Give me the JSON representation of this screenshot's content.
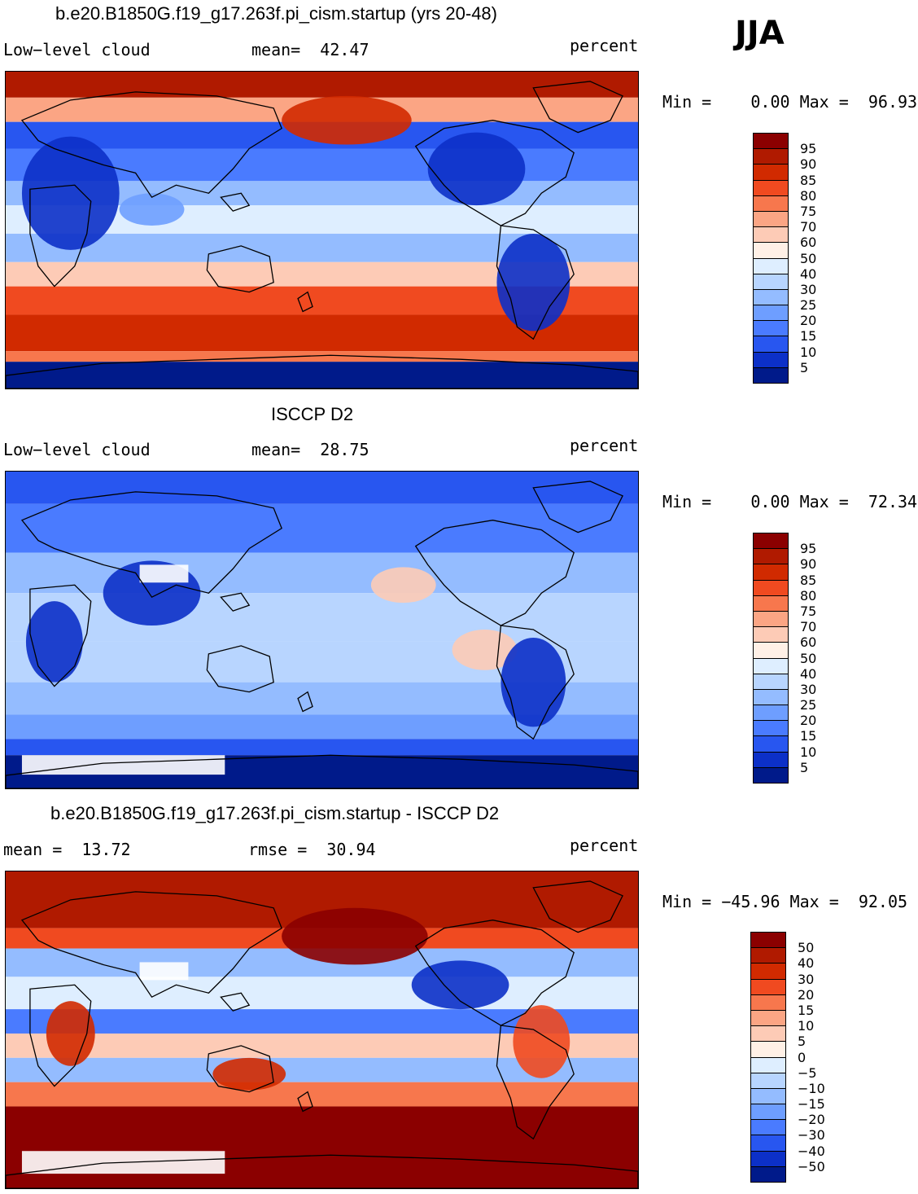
{
  "season": "JJA",
  "panels": [
    {
      "title": "b.e20.B1850G.f19_g17.263f.pi_cism.startup (yrs 20-48)",
      "left_label": "Low−level cloud",
      "stat1": "mean=  42.47",
      "stat2": "",
      "units": "percent",
      "minmax": "Min =    0.00 Max =  96.93",
      "kind": "model",
      "colorbar": {
        "labels": [
          "95",
          "90",
          "85",
          "80",
          "75",
          "70",
          "60",
          "50",
          "40",
          "30",
          "25",
          "20",
          "15",
          "10",
          "5"
        ],
        "colors": [
          "#8b0000",
          "#b01a00",
          "#d12a00",
          "#f04a20",
          "#f7774d",
          "#fba584",
          "#fdcbb6",
          "#fff0e6",
          "#deeeff",
          "#b8d5ff",
          "#94bcff",
          "#6e9eff",
          "#4a7bff",
          "#2856f0",
          "#0c30c8",
          "#001a8a"
        ]
      }
    },
    {
      "title": "ISCCP D2",
      "left_label": "Low−level cloud",
      "stat1": "mean=  28.75",
      "stat2": "",
      "units": "percent",
      "minmax": "Min =    0.00 Max =  72.34",
      "kind": "obs",
      "colorbar": {
        "labels": [
          "95",
          "90",
          "85",
          "80",
          "75",
          "70",
          "60",
          "50",
          "40",
          "30",
          "25",
          "20",
          "15",
          "10",
          "5"
        ],
        "colors": [
          "#8b0000",
          "#b01a00",
          "#d12a00",
          "#f04a20",
          "#f7774d",
          "#fba584",
          "#fdcbb6",
          "#fff0e6",
          "#deeeff",
          "#b8d5ff",
          "#94bcff",
          "#6e9eff",
          "#4a7bff",
          "#2856f0",
          "#0c30c8",
          "#001a8a"
        ]
      }
    },
    {
      "title": "b.e20.B1850G.f19_g17.263f.pi_cism.startup - ISCCP D2",
      "left_label": "",
      "stat1": "mean =  13.72",
      "stat2": "rmse =  30.94",
      "units": "percent",
      "minmax": "Min = −45.96 Max =  92.05",
      "kind": "diff",
      "colorbar": {
        "labels": [
          "50",
          "40",
          "30",
          "20",
          "15",
          "10",
          "5",
          "0",
          "−5",
          "−10",
          "−15",
          "−20",
          "−30",
          "−40",
          "−50"
        ],
        "colors": [
          "#8b0000",
          "#b01a00",
          "#d12a00",
          "#f04a20",
          "#f7774d",
          "#fba584",
          "#fdcbb6",
          "#fff0e6",
          "#deeeff",
          "#b8d5ff",
          "#94bcff",
          "#6e9eff",
          "#4a7bff",
          "#2856f0",
          "#0c30c8",
          "#001a8a"
        ]
      }
    }
  ]
}
